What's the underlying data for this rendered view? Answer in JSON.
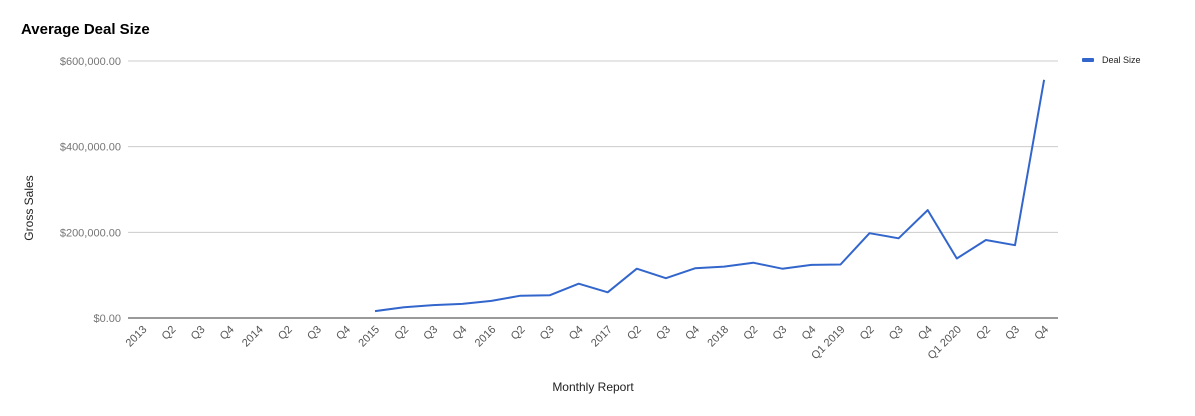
{
  "title": "Average Deal Size",
  "legend": {
    "label": "Deal Size",
    "color": "#3366cc"
  },
  "axes": {
    "xlabel": "Monthly Report",
    "ylabel": "Gross Sales",
    "yticks": [
      "$0.00",
      "$200,000.00",
      "$400,000.00",
      "$600,000.00"
    ]
  },
  "chart_data": {
    "type": "line",
    "title": "Average Deal Size",
    "xlabel": "Monthly Report",
    "ylabel": "Gross Sales",
    "ylim": [
      0,
      600000
    ],
    "grid": true,
    "legend_position": "right",
    "categories": [
      "2013",
      "Q2",
      "Q3",
      "Q4",
      "2014",
      "Q2",
      "Q3",
      "Q4",
      "2015",
      "Q2",
      "Q3",
      "Q4",
      "2016",
      "Q2",
      "Q3",
      "Q4",
      "2017",
      "Q2",
      "Q3",
      "Q4",
      "2018",
      "Q2",
      "Q3",
      "Q4",
      "Q1 2019",
      "Q2",
      "Q3",
      "Q4",
      "Q1 2020",
      "Q2",
      "Q3",
      "Q4"
    ],
    "series": [
      {
        "name": "Deal Size",
        "color": "#3366cc",
        "values": [
          null,
          null,
          null,
          null,
          null,
          null,
          null,
          null,
          16000,
          25000,
          30000,
          33000,
          40000,
          52000,
          53000,
          80000,
          60000,
          115000,
          93000,
          116000,
          120000,
          129000,
          115000,
          124000,
          125000,
          198000,
          186000,
          252000,
          139000,
          182000,
          170000,
          556000
        ]
      }
    ]
  }
}
